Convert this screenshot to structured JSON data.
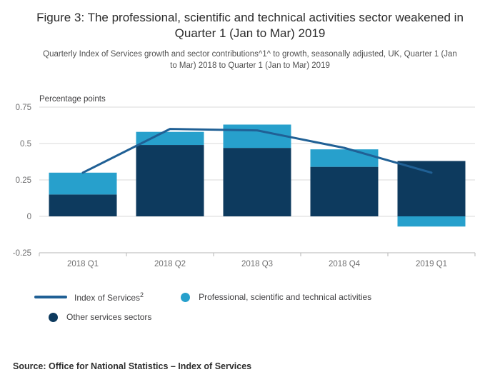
{
  "figure": {
    "title": "Figure 3: The professional, scientific and technical activities sector weakened in Quarter 1 (Jan to Mar) 2019",
    "subtitle": "Quarterly Index of Services growth and sector contributions^1^ to growth, seasonally adjusted, UK, Quarter 1 (Jan to Mar) 2018 to Quarter 1 (Jan to Mar) 2019",
    "source": "Source: Office for National Statistics – Index of Services"
  },
  "legend": {
    "line": {
      "label": "Index of Services",
      "footnote_marker": "2"
    },
    "prof": {
      "label": "Professional, scientific and technical activities"
    },
    "other": {
      "label": "Other services sectors"
    }
  },
  "colors": {
    "other_services_bar": "#0d3a5e",
    "prof_sci_tech_bar": "#27a0cc",
    "index_of_services_line": "#206095",
    "gridline": "#d9d9d9",
    "axis": "#b5b5b5",
    "tick_text": "#707071"
  },
  "chart_data": {
    "type": "bar",
    "variant": "stacked_bars_with_line_overlay",
    "title": "Figure 3: The professional, scientific and technical activities sector weakened in Quarter 1 (Jan to Mar) 2019",
    "ylabel": "Percentage points",
    "xlabel": "",
    "categories": [
      "2018 Q1",
      "2018 Q2",
      "2018 Q3",
      "2018 Q4",
      "2019 Q1"
    ],
    "series": [
      {
        "name": "Other services sectors",
        "type": "bar",
        "color": "#0d3a5e",
        "values": [
          0.15,
          0.49,
          0.47,
          0.34,
          0.38
        ]
      },
      {
        "name": "Professional, scientific and technical activities",
        "type": "bar",
        "color": "#27a0cc",
        "values": [
          0.15,
          0.09,
          0.16,
          0.12,
          -0.07
        ]
      },
      {
        "name": "Index of Services",
        "type": "line",
        "color": "#206095",
        "values": [
          0.3,
          0.6,
          0.59,
          0.47,
          0.3
        ]
      }
    ],
    "ylim": [
      -0.25,
      0.75
    ],
    "yticks": [
      -0.25,
      0,
      0.25,
      0.5,
      0.75
    ],
    "ytick_labels": [
      "-0.25",
      "0",
      "0.25",
      "0.5",
      "0.75"
    ],
    "grid": true,
    "legend_position": "bottom"
  }
}
